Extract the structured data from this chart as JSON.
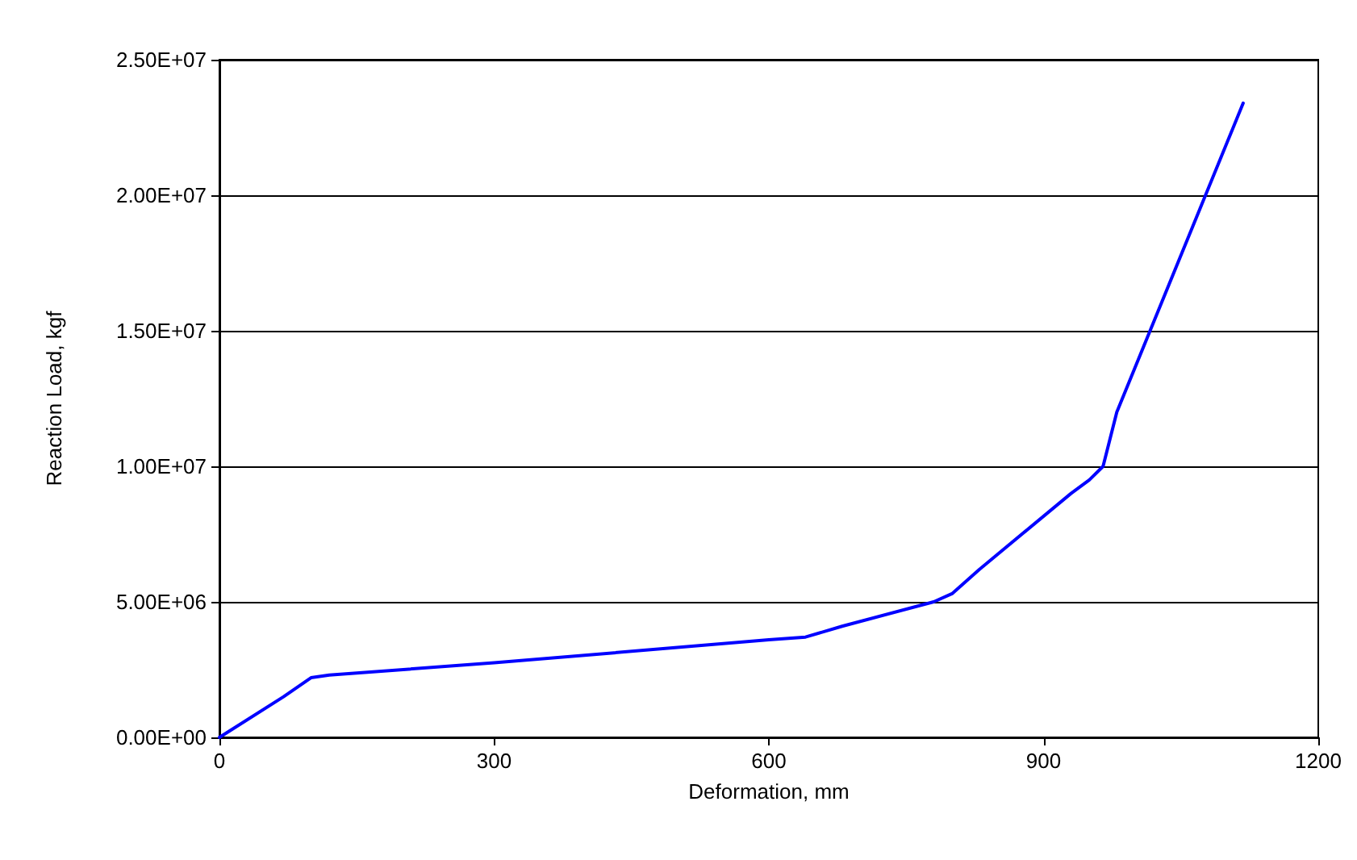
{
  "chart_data": {
    "type": "line",
    "xlabel": "Deformation, mm",
    "ylabel": "Reaction Load, kgf",
    "series": [
      {
        "color": "#0000ff",
        "x": [
          0,
          70,
          100,
          120,
          300,
          600,
          640,
          680,
          780,
          800,
          830,
          930,
          950,
          965,
          980,
          1118
        ],
        "values": [
          0,
          1500000,
          2200000,
          2300000,
          2750000,
          3600000,
          3700000,
          4100000,
          5000000,
          5300000,
          6200000,
          9000000,
          9500000,
          10000000,
          12000000,
          23400000
        ]
      }
    ],
    "xlim": [
      0,
      1200
    ],
    "xticks": [
      0,
      300,
      600,
      900,
      1200
    ],
    "ylim": [
      0,
      25000000
    ],
    "yticks": [
      {
        "value": 0,
        "label": "0.00E+00"
      },
      {
        "value": 5000000,
        "label": "5.00E+06"
      },
      {
        "value": 10000000,
        "label": "1.00E+07"
      },
      {
        "value": 15000000,
        "label": "1.50E+07"
      },
      {
        "value": 20000000,
        "label": "2.00E+07"
      },
      {
        "value": 25000000,
        "label": "2.50E+07"
      }
    ],
    "grid": "y",
    "marker": "none",
    "line_style": "solid"
  }
}
